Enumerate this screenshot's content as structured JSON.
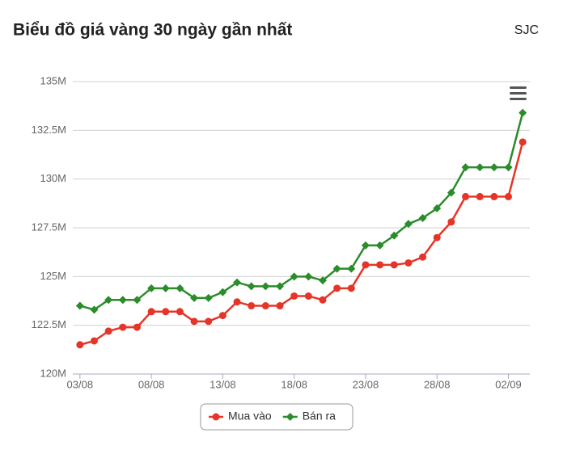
{
  "chart_data": {
    "type": "line",
    "title": "Biểu đồ giá vàng 30 ngày gần nhất",
    "source": "SJC",
    "categories": [
      "03/08",
      null,
      null,
      null,
      null,
      "08/08",
      null,
      null,
      null,
      null,
      "13/08",
      null,
      null,
      null,
      null,
      "18/08",
      null,
      null,
      null,
      null,
      "23/08",
      null,
      null,
      null,
      null,
      "28/08",
      null,
      null,
      null,
      null,
      "02/09",
      null
    ],
    "series": [
      {
        "name": "Mua vào",
        "color": "#e53528",
        "marker": "circle",
        "values": [
          121.5,
          121.7,
          122.2,
          122.4,
          122.4,
          123.2,
          123.2,
          123.2,
          122.7,
          122.7,
          123.0,
          123.7,
          123.5,
          123.5,
          123.5,
          124.0,
          124.0,
          123.8,
          124.4,
          124.4,
          125.6,
          125.6,
          125.6,
          125.7,
          126.0,
          127.0,
          127.8,
          129.1,
          129.1,
          129.1,
          129.1,
          131.9
        ]
      },
      {
        "name": "Bán ra",
        "color": "#2a8c2a",
        "marker": "diamond",
        "values": [
          123.5,
          123.3,
          123.8,
          123.8,
          123.8,
          124.4,
          124.4,
          124.4,
          123.9,
          123.9,
          124.2,
          124.7,
          124.5,
          124.5,
          124.5,
          125.0,
          125.0,
          124.8,
          125.4,
          125.4,
          126.6,
          126.6,
          127.1,
          127.7,
          128.0,
          128.5,
          129.3,
          130.6,
          130.6,
          130.6,
          130.6,
          133.4
        ]
      }
    ],
    "ylim": [
      120,
      135
    ],
    "yticks": [
      {
        "value": 120,
        "label": "120M"
      },
      {
        "value": 122.5,
        "label": "122.5M"
      },
      {
        "value": 125,
        "label": "125M"
      },
      {
        "value": 127.5,
        "label": "127.5M"
      },
      {
        "value": 130,
        "label": "130M"
      },
      {
        "value": 132.5,
        "label": "132.5M"
      },
      {
        "value": 135,
        "label": "135M"
      }
    ],
    "grid": true,
    "legend": "bottom"
  }
}
